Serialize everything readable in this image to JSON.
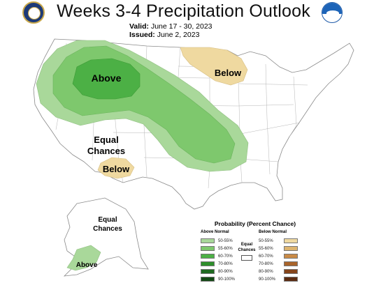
{
  "header": {
    "title": "Weeks 3-4 Precipitation Outlook",
    "valid_label": "Valid:",
    "valid_value": "June 17 - 30, 2023",
    "issued_label": "Issued:",
    "issued_value": "June 2, 2023"
  },
  "logos": {
    "left": "seal-icon",
    "right": "noaa-logo-icon",
    "right_text": "NOAA"
  },
  "map_labels": {
    "above_main": "Above",
    "below_north": "Below",
    "equal_chances_conus_line1": "Equal",
    "equal_chances_conus_line2": "Chances",
    "below_southwest": "Below",
    "equal_chances_alaska_line1": "Equal",
    "equal_chances_alaska_line2": "Chances",
    "above_alaska": "Above"
  },
  "legend": {
    "title": "Probability (Percent Chance)",
    "above_header": "Above Normal",
    "below_header": "Below Normal",
    "equal_label_line1": "Equal",
    "equal_label_line2": "Chances",
    "above": [
      {
        "label": "50-55%",
        "color": "#a9d89a"
      },
      {
        "label": "55-60%",
        "color": "#7ec86d"
      },
      {
        "label": "60-70%",
        "color": "#4cb045"
      },
      {
        "label": "70-80%",
        "color": "#2e8f2b"
      },
      {
        "label": "80-90%",
        "color": "#1f6a20"
      },
      {
        "label": "90-100%",
        "color": "#144a15"
      }
    ],
    "below": [
      {
        "label": "50-55%",
        "color": "#efd9a0"
      },
      {
        "label": "55-60%",
        "color": "#ddb46f"
      },
      {
        "label": "60-70%",
        "color": "#c98a46"
      },
      {
        "label": "70-80%",
        "color": "#a9642b"
      },
      {
        "label": "80-90%",
        "color": "#85451b"
      },
      {
        "label": "90-100%",
        "color": "#5b2c12"
      }
    ]
  },
  "colors": {
    "above_50_55": "#a9d89a",
    "above_55_60": "#7ec86d",
    "above_60_70": "#4cb045",
    "below_50_55": "#efd9a0",
    "boundary": "#8a8a8a"
  }
}
